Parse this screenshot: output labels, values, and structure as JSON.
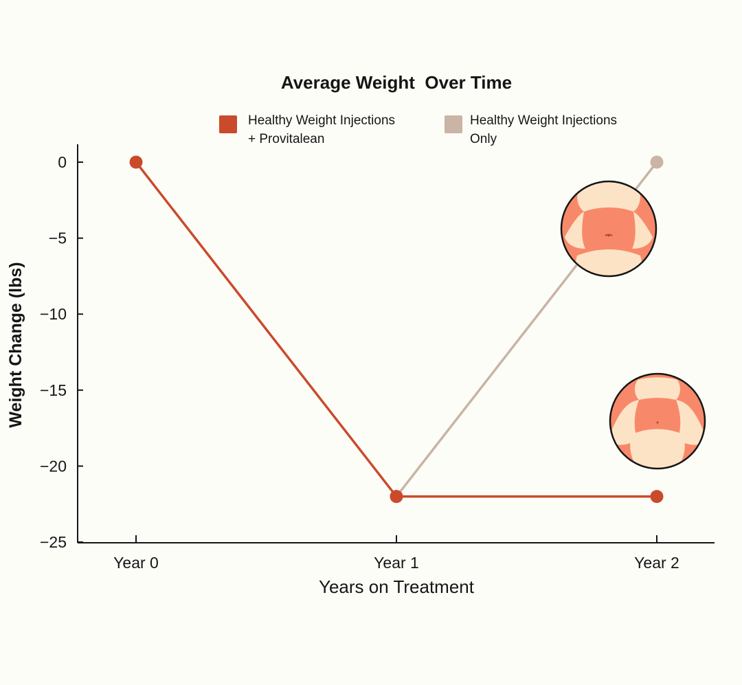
{
  "chart_data": {
    "type": "line",
    "title": "Average Weight  Over Time",
    "categories": [
      "Year 0",
      "Year 1",
      "Year 2"
    ],
    "xlabel": "Years on Treatment",
    "ylabel": "Weight Change (lbs)",
    "ylim": [
      -25,
      0
    ],
    "yticks": [
      0,
      -5,
      -10,
      -15,
      -20,
      -25
    ],
    "ytick_labels": [
      "0",
      "−5",
      "−10",
      "−15",
      "−20",
      "−25"
    ],
    "series": [
      {
        "name": "Healthy Weight Injections + Provitalean",
        "legend_lines": [
          "Healthy Weight Injections",
          "+ Provitalean"
        ],
        "color": "#c94b2c",
        "values": [
          0,
          -22,
          -22
        ]
      },
      {
        "name": "Healthy Weight Injections Only",
        "legend_lines": [
          "Healthy Weight Injections",
          "Only"
        ],
        "color": "#c9b4a5",
        "values": [
          null,
          -22,
          0
        ]
      }
    ],
    "annotations": [
      {
        "name": "body-before-illustration",
        "series": 1,
        "near_point": 2,
        "description_icon": "torso-fuller-icon"
      },
      {
        "name": "body-after-illustration",
        "series": 0,
        "near_point": 2,
        "description_icon": "torso-slim-icon"
      }
    ]
  },
  "colors": {
    "skin": "#f7896a",
    "skin_shadow": "#ee7455",
    "cloth": "#fde3c5",
    "background": "#fdfdf8",
    "axis": "#151515"
  }
}
